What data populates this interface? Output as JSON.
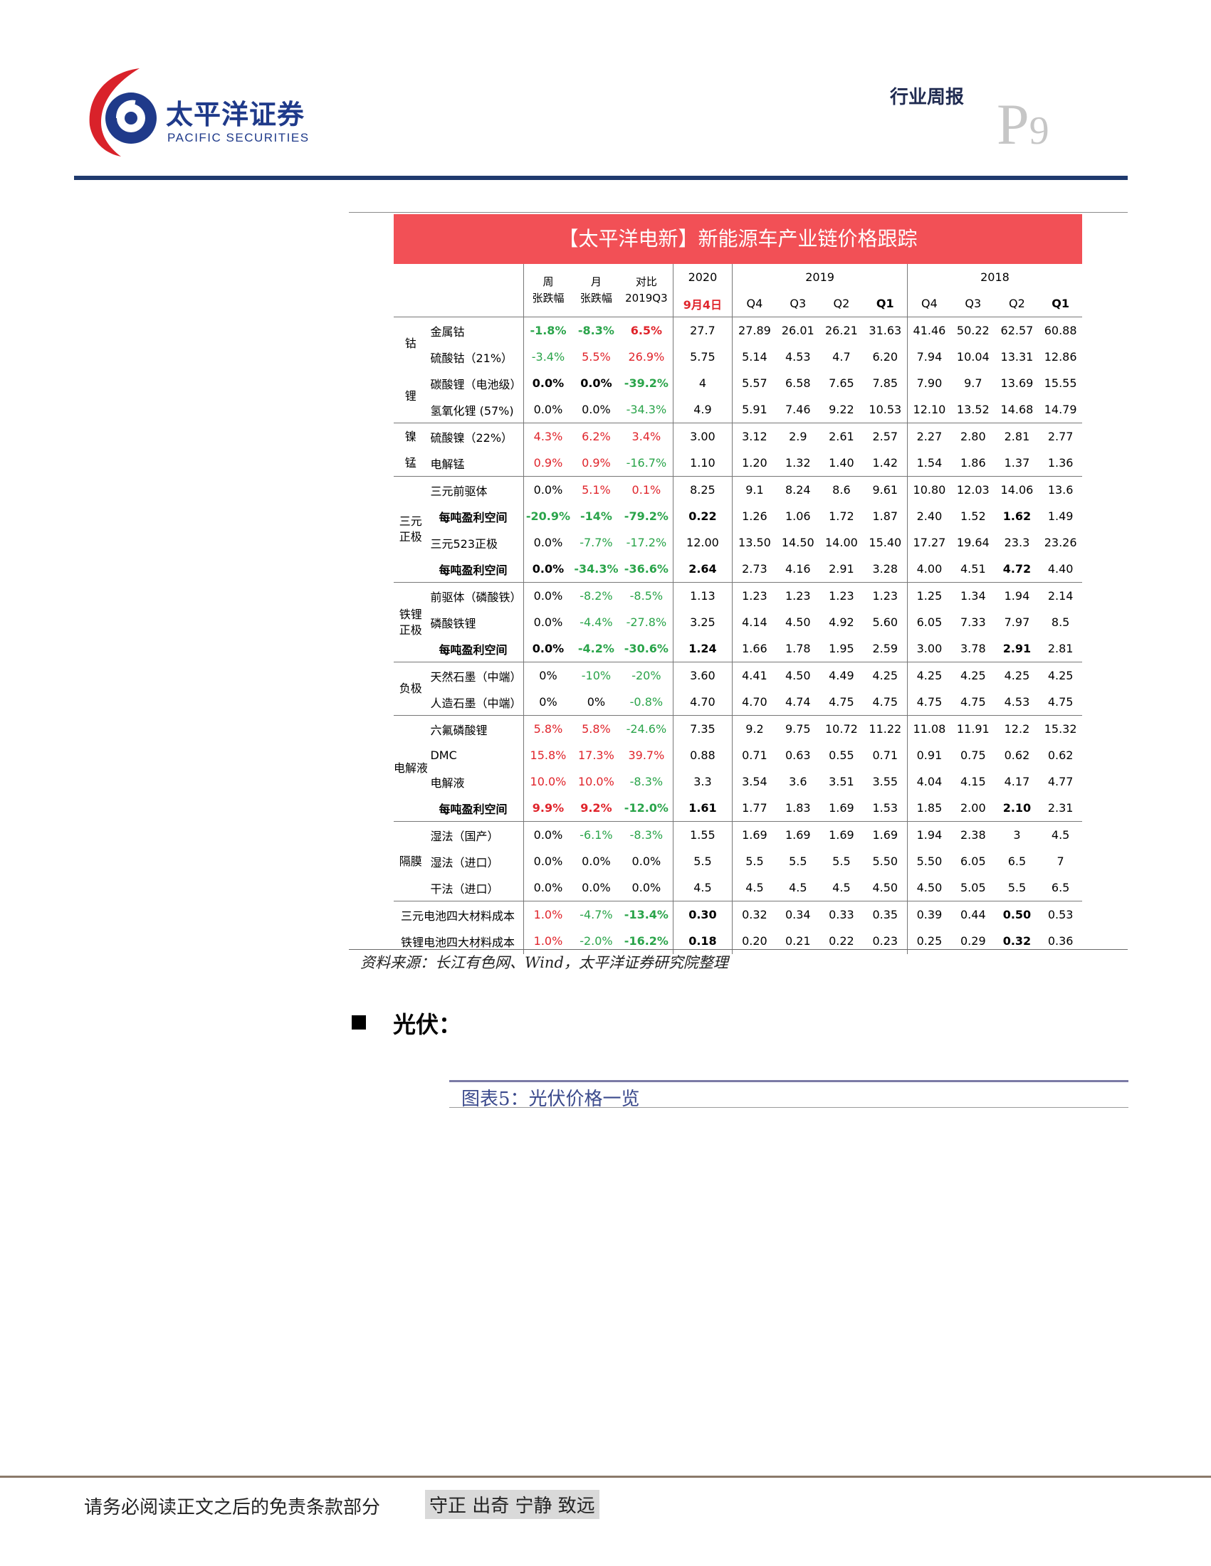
{
  "header": {
    "company_cn": "太平洋证券",
    "company_en": "PACIFIC SECURITIES",
    "report_type": "行业周报",
    "page_letter": "P",
    "page_number": "9"
  },
  "table": {
    "title": "【太平洋电新】新能源车产业链价格跟踪",
    "col_headers": {
      "week": [
        "周",
        "张跌幅"
      ],
      "month": [
        "月",
        "张跌幅"
      ],
      "vs": [
        "对比",
        "2019Q3"
      ],
      "y2020": "2020",
      "y2019": "2019",
      "y2018": "2018",
      "date": "9月4日",
      "quarters": [
        "Q4",
        "Q3",
        "Q2",
        "Q1"
      ]
    },
    "groups": [
      {
        "name_lines": [
          "钴"
        ],
        "rows": [
          {
            "item": "金属钴",
            "week": "-1.8%",
            "month": "-8.3%",
            "vs": "6.5%",
            "cur": "27.7",
            "q2019": [
              "27.89",
              "26.01",
              "26.21",
              "31.63"
            ],
            "q2018": [
              "41.46",
              "50.22",
              "62.57",
              "60.88"
            ]
          },
          {
            "item": "硫酸钴（21%）",
            "week": "-3.4%",
            "month": "5.5%",
            "vs": "26.9%",
            "cur": "5.75",
            "q2019": [
              "5.14",
              "4.53",
              "4.7",
              "6.20"
            ],
            "q2018": [
              "7.94",
              "10.04",
              "13.31",
              "12.86"
            ]
          }
        ]
      },
      {
        "name_lines": [
          "锂"
        ],
        "rows": [
          {
            "item": "碳酸锂（电池级）",
            "week": "0.0%",
            "month": "0.0%",
            "vs": "-39.2%",
            "cur": "4",
            "q2019": [
              "5.57",
              "6.58",
              "7.65",
              "7.85"
            ],
            "q2018": [
              "7.90",
              "9.7",
              "13.69",
              "15.55"
            ]
          },
          {
            "item": "氢氧化锂 (57%)",
            "week": "0.0%",
            "month": "0.0%",
            "vs": "-34.3%",
            "cur": "4.9",
            "q2019": [
              "5.91",
              "7.46",
              "9.22",
              "10.53"
            ],
            "q2018": [
              "12.10",
              "13.52",
              "14.68",
              "14.79"
            ]
          }
        ]
      },
      {
        "name_lines": [
          "镍"
        ],
        "rows": [
          {
            "item": "硫酸镍（22%）",
            "week": "4.3%",
            "month": "6.2%",
            "vs": "3.4%",
            "cur": "3.00",
            "q2019": [
              "3.12",
              "2.9",
              "2.61",
              "2.57"
            ],
            "q2018": [
              "2.27",
              "2.80",
              "2.81",
              "2.77"
            ]
          }
        ]
      },
      {
        "name_lines": [
          "锰"
        ],
        "rows": [
          {
            "item": "电解锰",
            "week": "0.9%",
            "month": "0.9%",
            "vs": "-16.7%",
            "cur": "1.10",
            "q2019": [
              "1.20",
              "1.32",
              "1.40",
              "1.42"
            ],
            "q2018": [
              "1.54",
              "1.86",
              "1.37",
              "1.36"
            ]
          }
        ]
      },
      {
        "name_lines": [
          "三元",
          "正极"
        ],
        "rows": [
          {
            "item": "三元前驱体",
            "week": "0.0%",
            "month": "5.1%",
            "vs": "0.1%",
            "cur": "8.25",
            "q2019": [
              "9.1",
              "8.24",
              "8.6",
              "9.61"
            ],
            "q2018": [
              "10.80",
              "12.03",
              "14.06",
              "13.6"
            ]
          },
          {
            "item": "每吨盈利空间",
            "week": "-20.9%",
            "month": "-14%",
            "vs": "-79.2%",
            "cur": "0.22",
            "q2019": [
              "1.26",
              "1.06",
              "1.72",
              "1.87"
            ],
            "q2018": [
              "2.40",
              "1.52",
              "1.62",
              "1.49"
            ]
          },
          {
            "item": "三元523正极",
            "week": "0.0%",
            "month": "-7.7%",
            "vs": "-17.2%",
            "cur": "12.00",
            "q2019": [
              "13.50",
              "14.50",
              "14.00",
              "15.40"
            ],
            "q2018": [
              "17.27",
              "19.64",
              "23.3",
              "23.26"
            ]
          },
          {
            "item": "每吨盈利空间",
            "week": "0.0%",
            "month": "-34.3%",
            "vs": "-36.6%",
            "cur": "2.64",
            "q2019": [
              "2.73",
              "4.16",
              "2.91",
              "3.28"
            ],
            "q2018": [
              "4.00",
              "4.51",
              "4.72",
              "4.40"
            ]
          }
        ]
      },
      {
        "name_lines": [
          "铁锂",
          "正极"
        ],
        "rows": [
          {
            "item": "前驱体（磷酸铁）",
            "week": "0.0%",
            "month": "-8.2%",
            "vs": "-8.5%",
            "cur": "1.13",
            "q2019": [
              "1.23",
              "1.23",
              "1.23",
              "1.23"
            ],
            "q2018": [
              "1.25",
              "1.34",
              "1.94",
              "2.14"
            ]
          },
          {
            "item": "磷酸铁锂",
            "week": "0.0%",
            "month": "-4.4%",
            "vs": "-27.8%",
            "cur": "3.25",
            "q2019": [
              "4.14",
              "4.50",
              "4.92",
              "5.60"
            ],
            "q2018": [
              "6.05",
              "7.33",
              "7.97",
              "8.5"
            ]
          },
          {
            "item": "每吨盈利空间",
            "week": "0.0%",
            "month": "-4.2%",
            "vs": "-30.6%",
            "cur": "1.24",
            "q2019": [
              "1.66",
              "1.78",
              "1.95",
              "2.59"
            ],
            "q2018": [
              "3.00",
              "3.78",
              "2.91",
              "2.81"
            ]
          }
        ]
      },
      {
        "name_lines": [
          "负极"
        ],
        "rows": [
          {
            "item": "天然石墨（中端）",
            "week": "0%",
            "month": "-10%",
            "vs": "-20%",
            "cur": "3.60",
            "q2019": [
              "4.41",
              "4.50",
              "4.49",
              "4.25"
            ],
            "q2018": [
              "4.25",
              "4.25",
              "4.25",
              "4.25"
            ]
          },
          {
            "item": "人造石墨（中端）",
            "week": "0%",
            "month": "0%",
            "vs": "-0.8%",
            "cur": "4.70",
            "q2019": [
              "4.70",
              "4.74",
              "4.75",
              "4.75"
            ],
            "q2018": [
              "4.75",
              "4.75",
              "4.53",
              "4.75"
            ]
          }
        ]
      },
      {
        "name_lines": [
          "电解液"
        ],
        "rows": [
          {
            "item": "六氟磷酸锂",
            "week": "5.8%",
            "month": "5.8%",
            "vs": "-24.6%",
            "cur": "7.35",
            "q2019": [
              "9.2",
              "9.75",
              "10.72",
              "11.22"
            ],
            "q2018": [
              "11.08",
              "11.91",
              "12.2",
              "15.32"
            ]
          },
          {
            "item": "DMC",
            "week": "15.8%",
            "month": "17.3%",
            "vs": "39.7%",
            "cur": "0.88",
            "q2019": [
              "0.71",
              "0.63",
              "0.55",
              "0.71"
            ],
            "q2018": [
              "0.91",
              "0.75",
              "0.62",
              "0.62"
            ]
          },
          {
            "item": "电解液",
            "week": "10.0%",
            "month": "10.0%",
            "vs": "-8.3%",
            "cur": "3.3",
            "q2019": [
              "3.54",
              "3.6",
              "3.51",
              "3.55"
            ],
            "q2018": [
              "4.04",
              "4.15",
              "4.17",
              "4.77"
            ]
          },
          {
            "item": "每吨盈利空间",
            "week": "9.9%",
            "month": "9.2%",
            "vs": "-12.0%",
            "cur": "1.61",
            "q2019": [
              "1.77",
              "1.83",
              "1.69",
              "1.53"
            ],
            "q2018": [
              "1.85",
              "2.00",
              "2.10",
              "2.31"
            ]
          }
        ]
      },
      {
        "name_lines": [
          "隔膜"
        ],
        "rows": [
          {
            "item": "湿法（国产）",
            "week": "0.0%",
            "month": "-6.1%",
            "vs": "-8.3%",
            "cur": "1.55",
            "q2019": [
              "1.69",
              "1.69",
              "1.69",
              "1.69"
            ],
            "q2018": [
              "1.94",
              "2.38",
              "3",
              "4.5"
            ]
          },
          {
            "item": "湿法（进口）",
            "week": "0.0%",
            "month": "0.0%",
            "vs": "0.0%",
            "cur": "5.5",
            "q2019": [
              "5.5",
              "5.5",
              "5.5",
              "5.50"
            ],
            "q2018": [
              "5.50",
              "6.05",
              "6.5",
              "7"
            ]
          },
          {
            "item": "干法（进口）",
            "week": "0.0%",
            "month": "0.0%",
            "vs": "0.0%",
            "cur": "4.5",
            "q2019": [
              "4.5",
              "4.5",
              "4.5",
              "4.50"
            ],
            "q2018": [
              "4.50",
              "5.05",
              "5.5",
              "6.5"
            ]
          }
        ]
      },
      {
        "name_lines": [],
        "rows": [
          {
            "item": "三元电池四大材料成本",
            "week": "1.0%",
            "month": "-4.7%",
            "vs": "-13.4%",
            "cur": "0.30",
            "q2019": [
              "0.32",
              "0.34",
              "0.33",
              "0.35"
            ],
            "q2018": [
              "0.39",
              "0.44",
              "0.50",
              "0.53"
            ]
          },
          {
            "item": "铁锂电池四大材料成本",
            "week": "1.0%",
            "month": "-2.0%",
            "vs": "-16.2%",
            "cur": "0.18",
            "q2019": [
              "0.20",
              "0.21",
              "0.22",
              "0.23"
            ],
            "q2018": [
              "0.25",
              "0.29",
              "0.32",
              "0.36"
            ]
          }
        ]
      }
    ],
    "source": "资料来源：长江有色网、Wind，太平洋证券研究院整理"
  },
  "section": {
    "title": "光伏：",
    "figure_label": "图表5：光伏价格一览"
  },
  "footer": {
    "disclaimer": "请务必阅读正文之后的免责条款部分",
    "motto": "守正 出奇 宁静 致远"
  },
  "colors": {
    "brand_navy": "#1f3a6e",
    "title_bar_red": "#f25056",
    "increase_red": "#e0242b",
    "decrease_green": "#2aa44a"
  }
}
